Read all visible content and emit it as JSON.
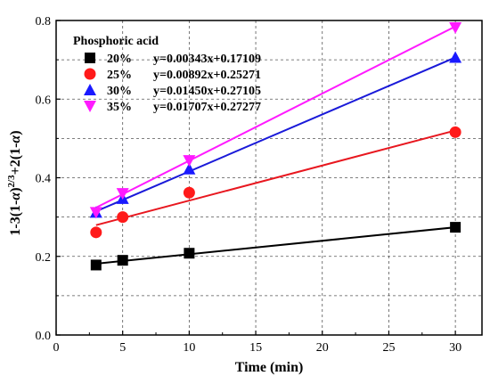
{
  "chart_data": {
    "type": "scatter",
    "title": "",
    "xlabel": "Time (min)",
    "ylabel_parts": {
      "main1": "1-3(1-",
      "alpha1": "α",
      "main2": ")",
      "sup": "2/3",
      "main3": "+2(1-",
      "alpha2": "α",
      "main4": ")"
    },
    "xlim": [
      0,
      32
    ],
    "ylim": [
      0.0,
      0.8
    ],
    "xticks": [
      0,
      5,
      10,
      15,
      20,
      25,
      30
    ],
    "xtick_labels": [
      "0",
      "5",
      "10",
      "15",
      "20",
      "25",
      "30"
    ],
    "yticks": [
      0.0,
      0.2,
      0.4,
      0.6,
      0.8
    ],
    "ytick_labels": [
      "0.0",
      "0.2",
      "0.4",
      "0.6",
      "0.8"
    ],
    "grid": true,
    "legend_title": "Phosphoric acid",
    "legend_position": "top-left",
    "series": [
      {
        "name": "20%",
        "equation": "y=0.00343x+0.17109",
        "color": "#000000",
        "line_color": "#000000",
        "marker": "square",
        "x": [
          3,
          5,
          10,
          30
        ],
        "y": [
          0.178,
          0.19,
          0.208,
          0.274
        ],
        "fit": {
          "slope": 0.00343,
          "intercept": 0.17109
        }
      },
      {
        "name": "25%",
        "equation": "y=0.00892x+0.25271",
        "color": "#ff1a1a",
        "line_color": "#e8171f",
        "marker": "circle",
        "x": [
          3,
          5,
          10,
          30
        ],
        "y": [
          0.261,
          0.3,
          0.362,
          0.516
        ],
        "fit": {
          "slope": 0.00892,
          "intercept": 0.25271
        }
      },
      {
        "name": "30%",
        "equation": "y=0.01450x+0.27105",
        "color": "#1a1aff",
        "line_color": "#1a1ad9",
        "marker": "triangle-up",
        "x": [
          3,
          5,
          10,
          30
        ],
        "y": [
          0.312,
          0.347,
          0.422,
          0.706
        ],
        "fit": {
          "slope": 0.0145,
          "intercept": 0.27105
        }
      },
      {
        "name": "35%",
        "equation": "y=0.01707x+0.27277",
        "color": "#ff1aff",
        "line_color": "#ff1aff",
        "marker": "triangle-down",
        "x": [
          3,
          5,
          10,
          30
        ],
        "y": [
          0.312,
          0.36,
          0.444,
          0.782
        ],
        "fit": {
          "slope": 0.01707,
          "intercept": 0.27277
        }
      }
    ]
  }
}
